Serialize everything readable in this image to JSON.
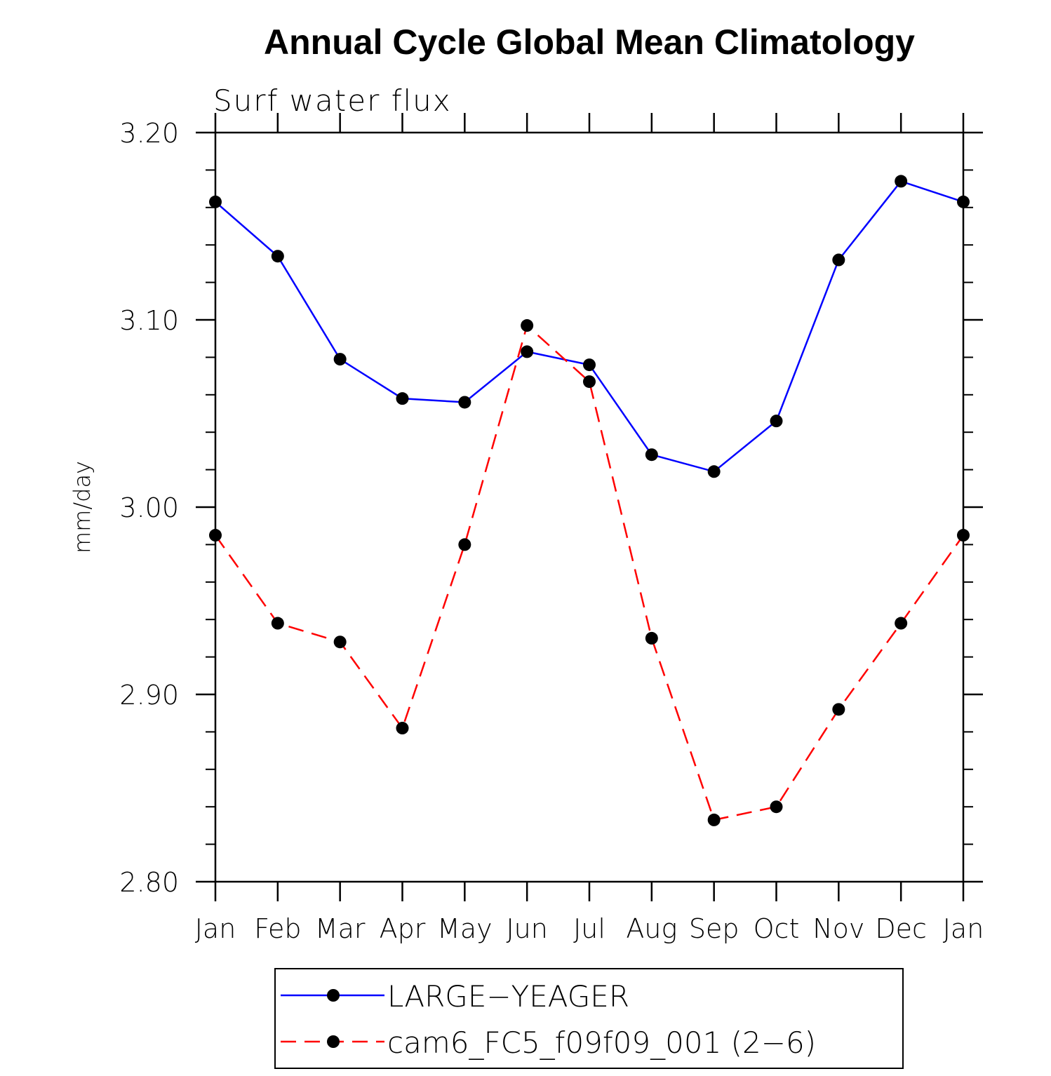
{
  "chart_data": {
    "type": "line",
    "title": "Annual Cycle Global Mean Climatology",
    "subtitle": "Surf water flux",
    "xlabel": "",
    "ylabel": "mm/day",
    "categories": [
      "Jan",
      "Feb",
      "Mar",
      "Apr",
      "May",
      "Jun",
      "Jul",
      "Aug",
      "Sep",
      "Oct",
      "Nov",
      "Dec",
      "Jan"
    ],
    "ylim": [
      2.8,
      3.2
    ],
    "y_ticks": [
      "2.80",
      "2.90",
      "3.00",
      "3.10",
      "3.20"
    ],
    "grid": false,
    "legend_position": "bottom",
    "series": [
      {
        "name": "LARGE−YEAGER",
        "color": "#0000ff",
        "line_style": "solid",
        "marker": "filled-circle",
        "values": [
          3.163,
          3.134,
          3.079,
          3.058,
          3.056,
          3.083,
          3.076,
          3.028,
          3.019,
          3.046,
          3.132,
          3.174,
          3.163
        ]
      },
      {
        "name": "cam6_FC5_f09f09_001 (2−6)",
        "color": "#ff0000",
        "line_style": "dashed",
        "marker": "filled-circle",
        "values": [
          2.985,
          2.938,
          2.928,
          2.882,
          2.98,
          3.097,
          3.067,
          2.93,
          2.833,
          2.84,
          2.892,
          2.938,
          2.985
        ]
      }
    ]
  }
}
